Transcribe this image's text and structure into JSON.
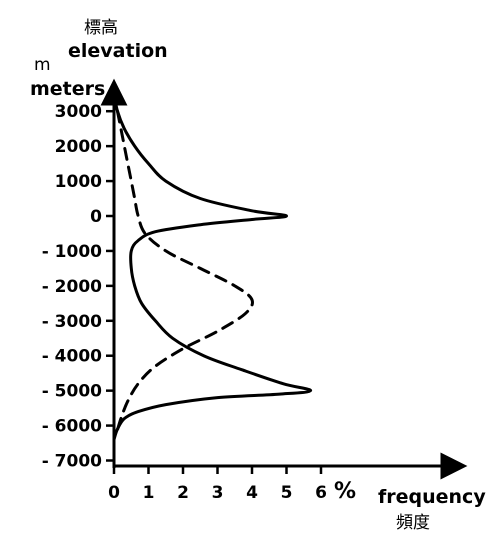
{
  "chart_data": {
    "type": "line",
    "ylabel_cjk": "標高",
    "ylabel": "elevation",
    "yunit_short": "m",
    "yunit": "meters",
    "xunit": "%",
    "xlabel": "frequency",
    "xlabel_cjk": "頻度",
    "xlim": [
      0,
      6.5
    ],
    "ylim": [
      -7000,
      3500
    ],
    "x_ticks": [
      "0",
      "1",
      "2",
      "3",
      "4",
      "5",
      "6"
    ],
    "y_ticks": [
      {
        "value": 3000,
        "label": "3000"
      },
      {
        "value": 2000,
        "label": "2000"
      },
      {
        "value": 1000,
        "label": "1000"
      },
      {
        "value": 0,
        "label": "0"
      },
      {
        "value": -1000,
        "label": "- 1000"
      },
      {
        "value": -2000,
        "label": "- 2000"
      },
      {
        "value": -3000,
        "label": "- 3000"
      },
      {
        "value": -4000,
        "label": "- 4000"
      },
      {
        "value": -5000,
        "label": "- 5000"
      },
      {
        "value": -6000,
        "label": "- 6000"
      },
      {
        "value": -7000,
        "label": "- 7000"
      }
    ],
    "series": [
      {
        "style": "solid",
        "points": [
          [
            0,
            3500
          ],
          [
            0.1,
            3000
          ],
          [
            0.3,
            2500
          ],
          [
            0.6,
            2000
          ],
          [
            1.0,
            1500
          ],
          [
            1.5,
            1000
          ],
          [
            2.5,
            500
          ],
          [
            4.0,
            150
          ],
          [
            5.0,
            0
          ],
          [
            4.0,
            -100
          ],
          [
            2.5,
            -250
          ],
          [
            1.2,
            -450
          ],
          [
            0.7,
            -700
          ],
          [
            0.5,
            -1000
          ],
          [
            0.5,
            -1500
          ],
          [
            0.6,
            -2000
          ],
          [
            0.8,
            -2500
          ],
          [
            1.2,
            -3000
          ],
          [
            1.7,
            -3500
          ],
          [
            2.6,
            -4000
          ],
          [
            3.7,
            -4400
          ],
          [
            4.9,
            -4800
          ],
          [
            5.7,
            -5000
          ],
          [
            4.8,
            -5100
          ],
          [
            3.0,
            -5200
          ],
          [
            1.5,
            -5400
          ],
          [
            0.7,
            -5600
          ],
          [
            0.3,
            -5800
          ],
          [
            0.1,
            -6100
          ],
          [
            0,
            -6400
          ]
        ]
      },
      {
        "style": "dashed",
        "points": [
          [
            0.1,
            3000
          ],
          [
            0.2,
            2500
          ],
          [
            0.3,
            2000
          ],
          [
            0.4,
            1500
          ],
          [
            0.5,
            1000
          ],
          [
            0.6,
            500
          ],
          [
            0.7,
            0
          ],
          [
            0.9,
            -500
          ],
          [
            1.5,
            -1000
          ],
          [
            2.5,
            -1500
          ],
          [
            3.5,
            -2000
          ],
          [
            4.0,
            -2400
          ],
          [
            3.8,
            -2800
          ],
          [
            3.0,
            -3300
          ],
          [
            2.0,
            -3800
          ],
          [
            1.2,
            -4300
          ],
          [
            0.7,
            -4800
          ],
          [
            0.4,
            -5300
          ],
          [
            0.2,
            -5800
          ],
          [
            0.05,
            -6300
          ]
        ]
      }
    ]
  }
}
